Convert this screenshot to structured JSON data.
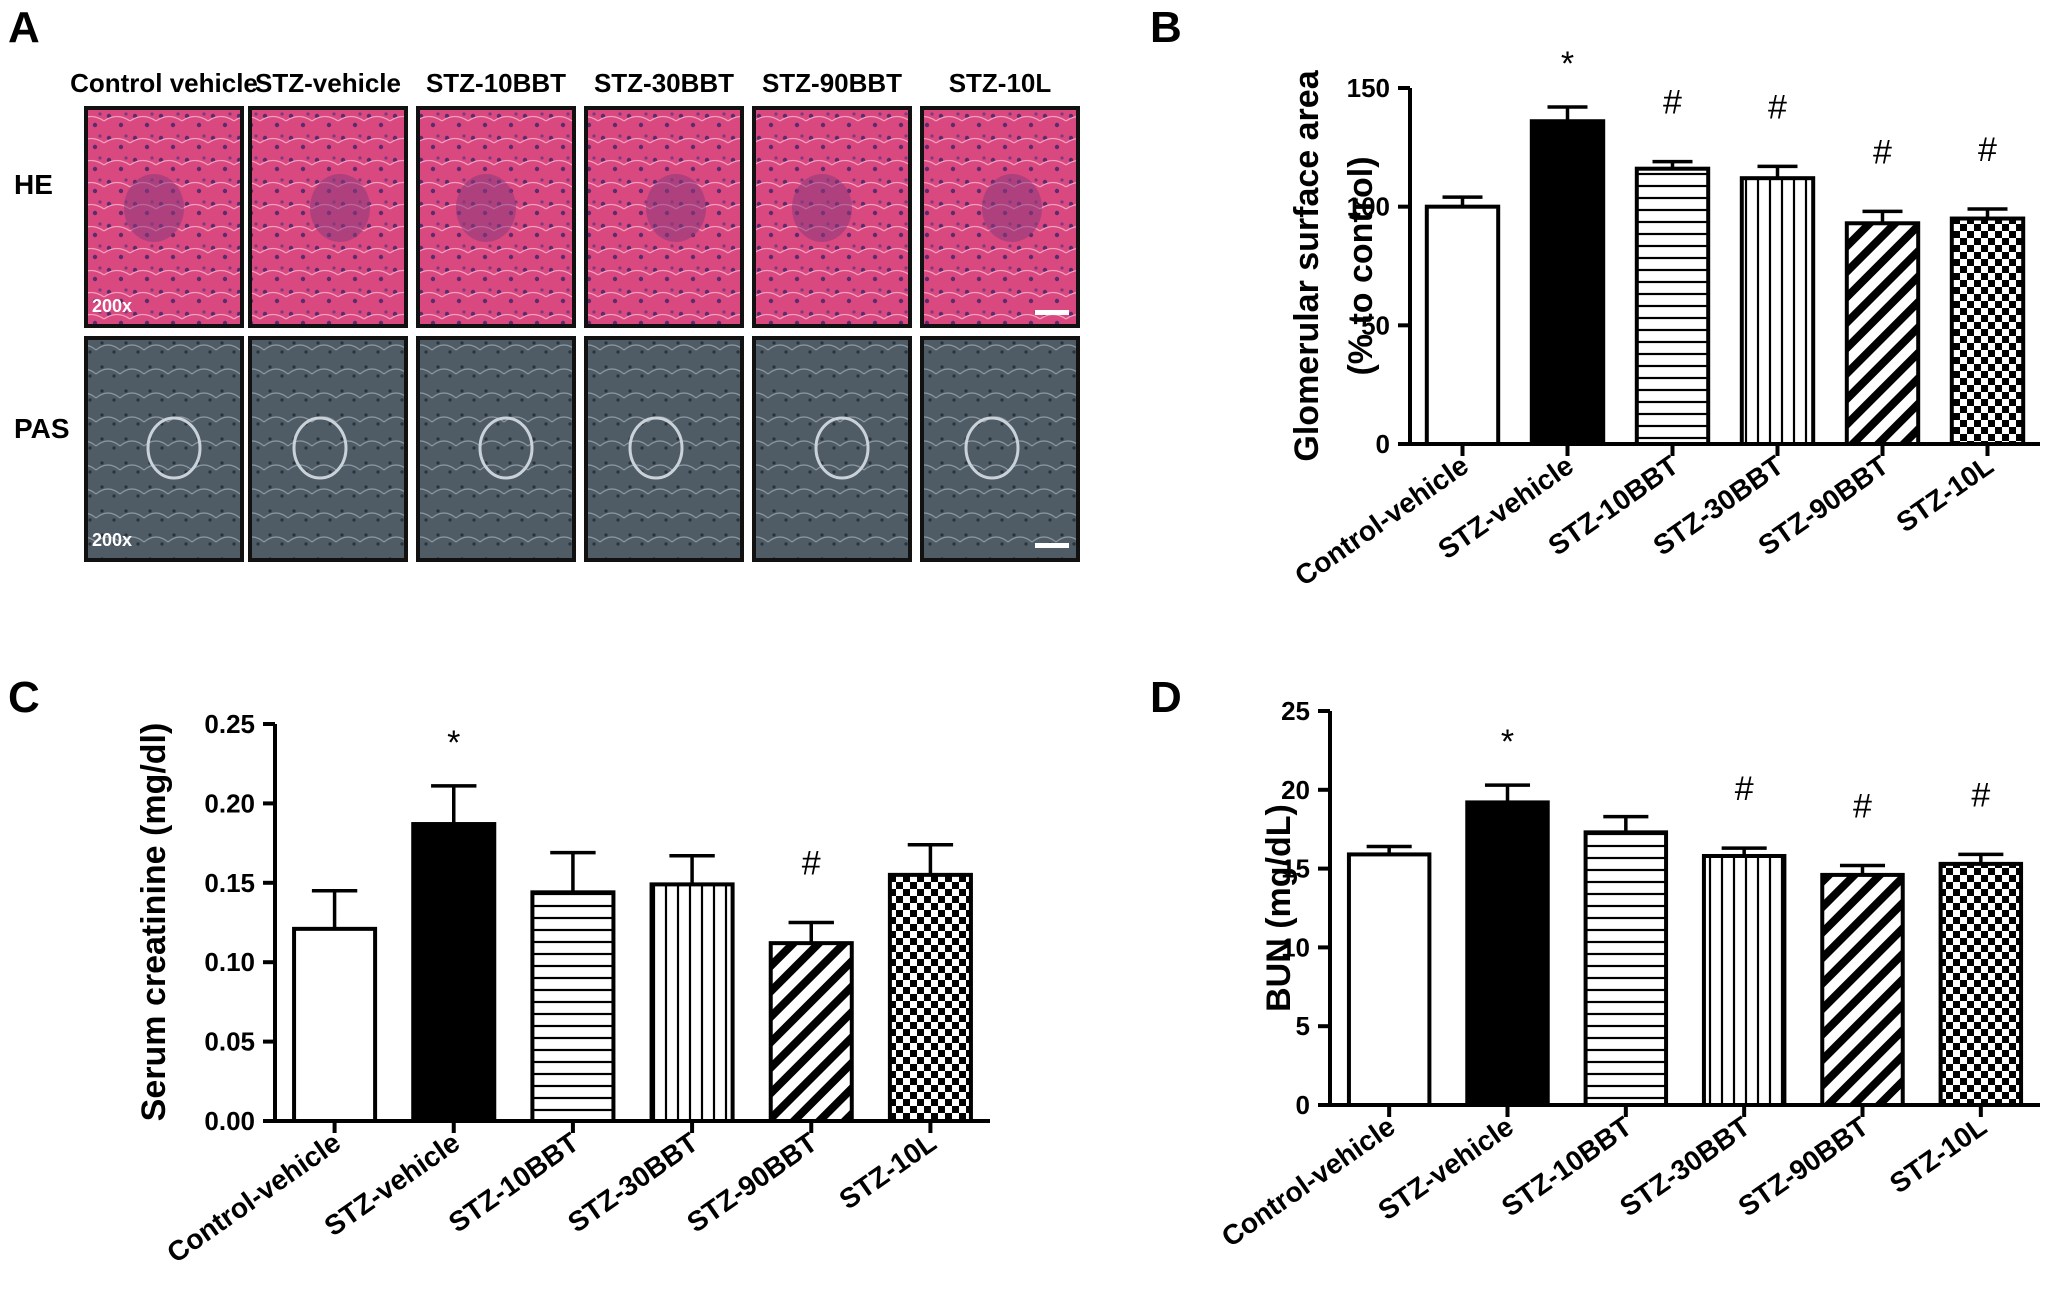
{
  "panels": {
    "A": {
      "letter": "A",
      "columns": [
        "Control vehicle",
        "STZ-vehicle",
        "STZ-10BBT",
        "STZ-30BBT",
        "STZ-90BBT",
        "STZ-10L"
      ],
      "rows": [
        "HE",
        "PAS"
      ],
      "magnification_he": "200x",
      "magnification_pas": "200x",
      "colors": {
        "he_tissue": "#d9487e",
        "he_nuclei": "#5a2b6e",
        "pas_tissue": "#4f5b65",
        "pas_structures": "#2a323a"
      }
    }
  },
  "chart_data": [
    {
      "panel": "B",
      "type": "bar",
      "ylabel_line1": "Glomerular surface area",
      "ylabel_line2": "(% to control)",
      "ylim": [
        0,
        150
      ],
      "yticks": [
        "0",
        "50",
        "100",
        "150"
      ],
      "categories": [
        "Control-vehicle",
        "STZ-vehicle",
        "STZ-10BBT",
        "STZ-30BBT",
        "STZ-90BBT",
        "STZ-10L"
      ],
      "values": [
        100,
        136,
        116,
        112,
        93,
        95
      ],
      "errors": [
        4,
        6,
        3,
        5,
        5,
        4
      ],
      "annotations": [
        "",
        "*",
        "#",
        "#",
        "#",
        "#"
      ],
      "fills": [
        "white",
        "black",
        "hlines",
        "vlines",
        "diag",
        "check"
      ],
      "grid": false,
      "legend": "none"
    },
    {
      "panel": "C",
      "type": "bar",
      "ylabel": "Serum creatinine (mg/dl)",
      "ylim": [
        0,
        0.25
      ],
      "yticks": [
        "0.00",
        "0.05",
        "0.10",
        "0.15",
        "0.20",
        "0.25"
      ],
      "categories": [
        "Control-vehicle",
        "STZ-vehicle",
        "STZ-10BBT",
        "STZ-30BBT",
        "STZ-90BBT",
        "STZ-10L"
      ],
      "values": [
        0.121,
        0.187,
        0.144,
        0.149,
        0.112,
        0.155
      ],
      "errors": [
        0.024,
        0.024,
        0.025,
        0.018,
        0.013,
        0.019
      ],
      "annotations": [
        "",
        "*",
        "",
        "",
        "#",
        ""
      ],
      "fills": [
        "white",
        "black",
        "hlines",
        "vlines",
        "diag",
        "check"
      ],
      "grid": false,
      "legend": "none"
    },
    {
      "panel": "D",
      "type": "bar",
      "ylabel": "BUN (mg/dL)",
      "ylim": [
        0,
        25
      ],
      "yticks": [
        "0",
        "5",
        "10",
        "15",
        "20",
        "25"
      ],
      "categories": [
        "Control-vehicle",
        "STZ-vehicle",
        "STZ-10BBT",
        "STZ-30BBT",
        "STZ-90BBT",
        "STZ-10L"
      ],
      "values": [
        15.9,
        19.2,
        17.3,
        15.8,
        14.6,
        15.3
      ],
      "errors": [
        0.5,
        1.1,
        1.0,
        0.5,
        0.6,
        0.6
      ],
      "annotations": [
        "",
        "*",
        "",
        "#",
        "#",
        "#"
      ],
      "fills": [
        "white",
        "black",
        "hlines",
        "vlines",
        "diag",
        "check"
      ],
      "grid": false,
      "legend": "none"
    }
  ]
}
